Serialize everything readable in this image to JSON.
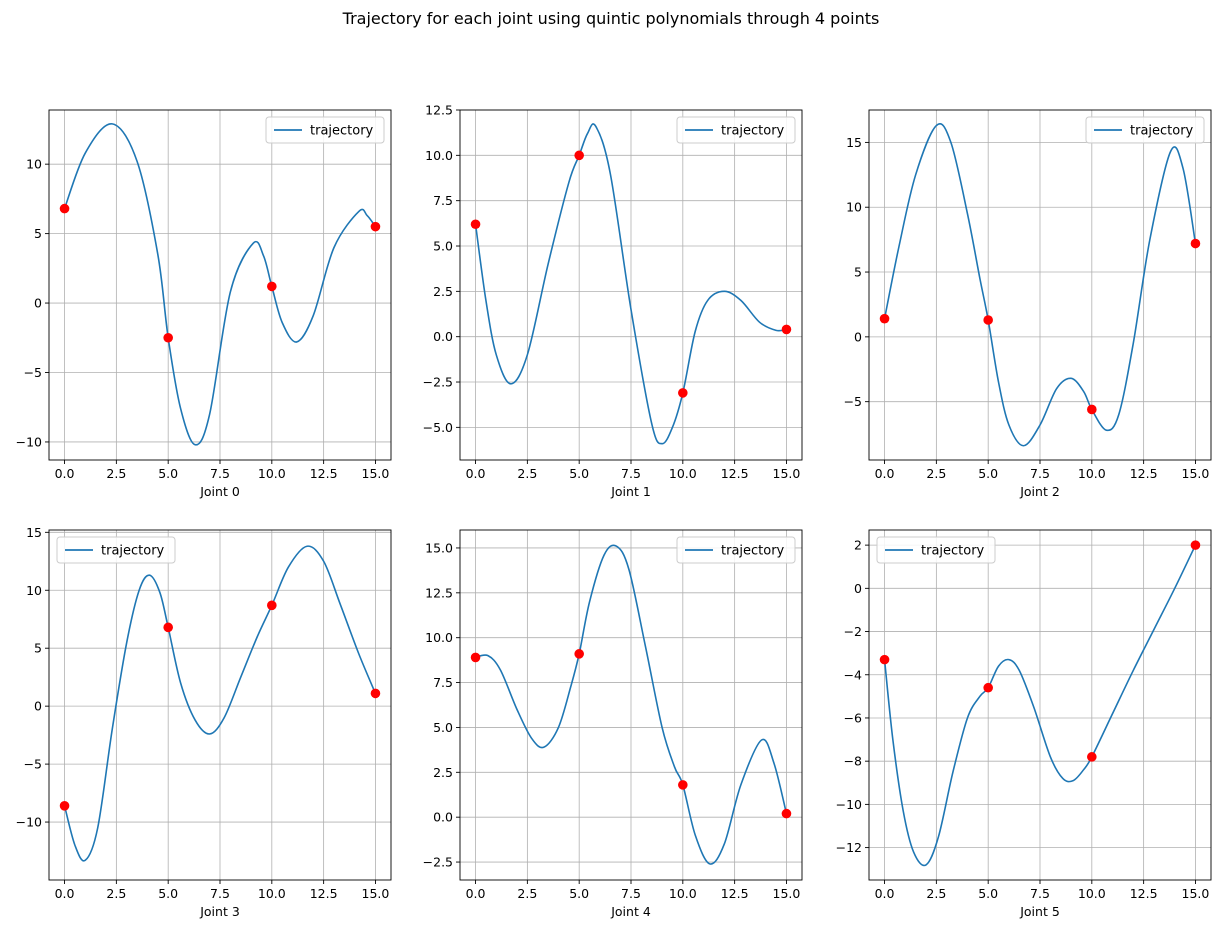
{
  "suptitle": "Trajectory for each joint using quintic polynomials through 4 points",
  "colors": {
    "line": "#1f77b4",
    "points": "#ff0000",
    "grid": "#b0b0b0",
    "axes": "#000000"
  },
  "chart_data": [
    {
      "type": "line",
      "xlabel": "Joint 0",
      "legend": [
        "trajectory"
      ],
      "legend_loc": "upper right",
      "grid": true,
      "xlim": [
        -0.75,
        15.75
      ],
      "ylim": [
        -11.3,
        13.9
      ],
      "xticks": [
        0,
        2.5,
        5,
        7.5,
        10,
        12.5,
        15
      ],
      "xtick_labels": [
        "0.0",
        "2.5",
        "5.0",
        "7.5",
        "10.0",
        "12.5",
        "15.0"
      ],
      "yticks": [
        -10,
        -5,
        0,
        5,
        10
      ],
      "ytick_labels": [
        "−10",
        "−5",
        "0",
        "5",
        "10"
      ],
      "series": [
        {
          "name": "trajectory",
          "x": [
            0,
            1,
            2.3,
            3.5,
            4.5,
            5,
            5.6,
            6.3,
            7.0,
            8.0,
            9.1,
            9.6,
            10,
            10.5,
            11.2,
            12.0,
            13.0,
            14.2,
            14.6,
            15
          ],
          "y": [
            6.8,
            10.8,
            12.9,
            10.2,
            3.5,
            -2.5,
            -7.6,
            -10.2,
            -8.0,
            0.8,
            4.3,
            3.4,
            1.2,
            -1.4,
            -2.8,
            -0.9,
            4.0,
            6.6,
            6.3,
            5.5
          ]
        }
      ],
      "points": {
        "x": [
          0,
          5,
          10,
          15
        ],
        "y": [
          6.8,
          -2.5,
          1.2,
          5.5
        ]
      }
    },
    {
      "type": "line",
      "xlabel": "Joint 1",
      "legend": [
        "trajectory"
      ],
      "legend_loc": "upper right",
      "grid": true,
      "xlim": [
        -0.75,
        15.75
      ],
      "ylim": [
        -6.8,
        12.5
      ],
      "xticks": [
        0,
        2.5,
        5,
        7.5,
        10,
        12.5,
        15
      ],
      "xtick_labels": [
        "0.0",
        "2.5",
        "5.0",
        "7.5",
        "10.0",
        "12.5",
        "15.0"
      ],
      "yticks": [
        -5,
        -2.5,
        0,
        2.5,
        5,
        7.5,
        10,
        12.5
      ],
      "ytick_labels": [
        "−5.0",
        "−2.5",
        "0.0",
        "2.5",
        "5.0",
        "7.5",
        "10.0",
        "12.5"
      ],
      "series": [
        {
          "name": "trajectory",
          "x": [
            0,
            0.5,
            1.0,
            1.7,
            2.5,
            3.5,
            4.5,
            5,
            5.4,
            5.8,
            6.5,
            7.5,
            8.5,
            9.0,
            9.5,
            10,
            10.6,
            11.2,
            12.0,
            12.8,
            13.7,
            14.5,
            15
          ],
          "y": [
            6.2,
            2.0,
            -1.0,
            -2.6,
            -1.0,
            4.0,
            8.5,
            10.0,
            11.2,
            11.6,
            9.0,
            1.5,
            -4.8,
            -5.9,
            -5.0,
            -3.1,
            0.3,
            2.0,
            2.5,
            2.0,
            0.8,
            0.35,
            0.4
          ]
        }
      ],
      "points": {
        "x": [
          0,
          5,
          10,
          15
        ],
        "y": [
          6.2,
          10.0,
          -3.1,
          0.4
        ]
      }
    },
    {
      "type": "line",
      "xlabel": "Joint 2",
      "legend": [
        "trajectory"
      ],
      "legend_loc": "upper right",
      "grid": true,
      "xlim": [
        -0.75,
        15.75
      ],
      "ylim": [
        -9.5,
        17.5
      ],
      "xticks": [
        0,
        2.5,
        5,
        7.5,
        10,
        12.5,
        15
      ],
      "xtick_labels": [
        "0.0",
        "2.5",
        "5.0",
        "7.5",
        "10.0",
        "12.5",
        "15.0"
      ],
      "yticks": [
        -5,
        0,
        5,
        10,
        15
      ],
      "ytick_labels": [
        "−5",
        "0",
        "5",
        "10",
        "15"
      ],
      "series": [
        {
          "name": "trajectory",
          "x": [
            0,
            0.7,
            1.5,
            2.5,
            3.2,
            4.0,
            4.6,
            5,
            5.5,
            6.0,
            6.7,
            7.5,
            8.3,
            9.0,
            9.6,
            10,
            10.7,
            11.3,
            12.0,
            12.8,
            13.8,
            14.4,
            15
          ],
          "y": [
            1.4,
            7.0,
            12.5,
            16.3,
            15.0,
            9.5,
            4.5,
            1.3,
            -3.5,
            -6.8,
            -8.4,
            -6.8,
            -4.0,
            -3.2,
            -4.2,
            -5.6,
            -7.2,
            -6.0,
            -0.5,
            7.5,
            14.3,
            13.0,
            7.2
          ]
        }
      ],
      "points": {
        "x": [
          0,
          5,
          10,
          15
        ],
        "y": [
          1.4,
          1.3,
          -5.6,
          7.2
        ]
      }
    },
    {
      "type": "line",
      "xlabel": "Joint 3",
      "legend": [
        "trajectory"
      ],
      "legend_loc": "upper left",
      "grid": true,
      "xlim": [
        -0.75,
        15.75
      ],
      "ylim": [
        -15.0,
        15.2
      ],
      "xticks": [
        0,
        2.5,
        5,
        7.5,
        10,
        12.5,
        15
      ],
      "xtick_labels": [
        "0.0",
        "2.5",
        "5.0",
        "7.5",
        "10.0",
        "12.5",
        "15.0"
      ],
      "yticks": [
        -10,
        -5,
        0,
        5,
        10,
        15
      ],
      "ytick_labels": [
        "−10",
        "−5",
        "0",
        "5",
        "10",
        "15"
      ],
      "series": [
        {
          "name": "trajectory",
          "x": [
            0,
            0.5,
            1.0,
            1.6,
            2.3,
            3.0,
            3.6,
            4.1,
            4.6,
            5,
            5.6,
            6.3,
            7.0,
            7.7,
            8.5,
            9.3,
            10,
            10.8,
            11.7,
            12.5,
            13.3,
            14.2,
            15
          ],
          "y": [
            -8.6,
            -12.0,
            -13.3,
            -10.5,
            -2.0,
            5.5,
            10.0,
            11.3,
            9.8,
            6.8,
            2.0,
            -1.2,
            -2.4,
            -1.0,
            2.5,
            6.0,
            8.7,
            12.0,
            13.8,
            12.5,
            8.8,
            4.5,
            1.1
          ]
        }
      ],
      "points": {
        "x": [
          0,
          5,
          10,
          15
        ],
        "y": [
          -8.6,
          6.8,
          8.7,
          1.1
        ]
      }
    },
    {
      "type": "line",
      "xlabel": "Joint 4",
      "legend": [
        "trajectory"
      ],
      "legend_loc": "upper right",
      "grid": true,
      "xlim": [
        -0.75,
        15.75
      ],
      "ylim": [
        -3.5,
        16.0
      ],
      "xticks": [
        0,
        2.5,
        5,
        7.5,
        10,
        12.5,
        15
      ],
      "xtick_labels": [
        "0.0",
        "2.5",
        "5.0",
        "7.5",
        "10.0",
        "12.5",
        "15.0"
      ],
      "yticks": [
        -2.5,
        0,
        2.5,
        5,
        7.5,
        10,
        12.5,
        15
      ],
      "ytick_labels": [
        "−2.5",
        "0.0",
        "2.5",
        "5.0",
        "7.5",
        "10.0",
        "12.5",
        "15.0"
      ],
      "series": [
        {
          "name": "trajectory",
          "x": [
            0,
            0.6,
            1.2,
            2.0,
            2.7,
            3.3,
            4.0,
            4.6,
            5,
            5.5,
            6.2,
            6.8,
            7.4,
            8.2,
            9.0,
            9.6,
            10,
            10.6,
            11.3,
            12.0,
            12.8,
            13.8,
            14.4,
            15
          ],
          "y": [
            8.9,
            9.0,
            8.2,
            6.0,
            4.4,
            3.9,
            5.0,
            7.3,
            9.1,
            12.0,
            14.6,
            15.1,
            13.8,
            9.5,
            5.0,
            2.8,
            1.8,
            -1.0,
            -2.6,
            -1.5,
            1.8,
            4.3,
            3.0,
            0.2
          ]
        }
      ],
      "points": {
        "x": [
          0,
          5,
          10,
          15
        ],
        "y": [
          8.9,
          9.1,
          1.8,
          0.2
        ]
      }
    },
    {
      "type": "line",
      "xlabel": "Joint 5",
      "legend": [
        "trajectory"
      ],
      "legend_loc": "upper left",
      "grid": true,
      "xlim": [
        -0.75,
        15.75
      ],
      "ylim": [
        -13.5,
        2.7
      ],
      "xticks": [
        0,
        2.5,
        5,
        7.5,
        10,
        12.5,
        15
      ],
      "xtick_labels": [
        "0.0",
        "2.5",
        "5.0",
        "7.5",
        "10.0",
        "12.5",
        "15.0"
      ],
      "yticks": [
        -12,
        -10,
        -8,
        -6,
        -4,
        -2,
        0,
        2
      ],
      "ytick_labels": [
        "−12",
        "−10",
        "−8",
        "−6",
        "−4",
        "−2",
        "0",
        "2"
      ],
      "series": [
        {
          "name": "trajectory",
          "x": [
            0,
            0.4,
            0.9,
            1.4,
            2.0,
            2.6,
            3.3,
            4.0,
            4.6,
            5,
            5.5,
            6.0,
            6.5,
            7.2,
            8.0,
            8.6,
            9.1,
            9.6,
            10,
            11.0,
            12.0,
            13.0,
            14.0,
            15
          ],
          "y": [
            -3.3,
            -7.0,
            -10.3,
            -12.2,
            -12.8,
            -11.5,
            -8.5,
            -6.0,
            -5.0,
            -4.6,
            -3.6,
            -3.3,
            -3.8,
            -5.5,
            -7.8,
            -8.8,
            -8.9,
            -8.4,
            -7.8,
            -5.8,
            -3.8,
            -1.9,
            0.0,
            2.0
          ]
        }
      ],
      "points": {
        "x": [
          0,
          5,
          10,
          15
        ],
        "y": [
          -3.3,
          -4.6,
          -7.8,
          2.0
        ]
      }
    }
  ]
}
